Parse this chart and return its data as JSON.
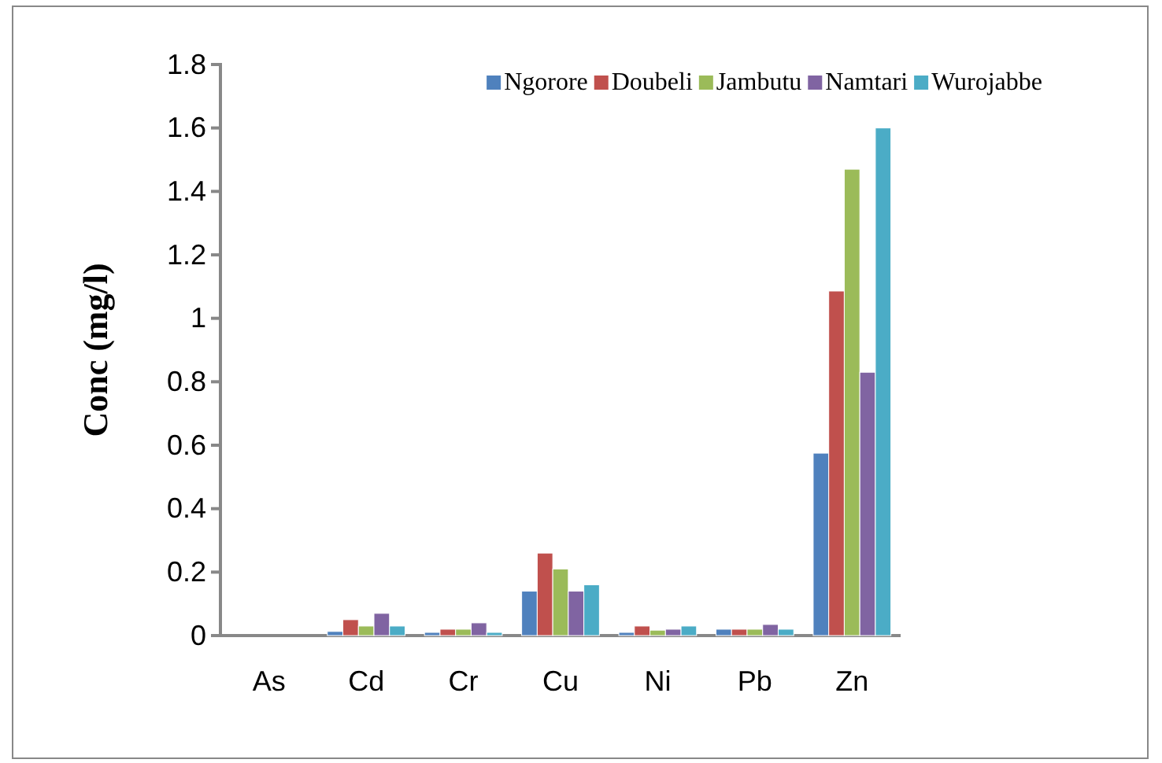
{
  "chart_data": {
    "type": "bar",
    "ylabel": "Conc (mg/l)",
    "categories": [
      "As",
      "Cd",
      "Cr",
      "Cu",
      "Ni",
      "Pb",
      "Zn"
    ],
    "series": [
      {
        "name": "Ngorore",
        "color": "#4f81bd",
        "values": [
          0,
          0.013,
          0.01,
          0.14,
          0.01,
          0.02,
          0.575
        ]
      },
      {
        "name": "Doubeli",
        "color": "#c0504d",
        "values": [
          0,
          0.05,
          0.02,
          0.26,
          0.03,
          0.02,
          1.086
        ]
      },
      {
        "name": "Jambutu",
        "color": "#9bbb59",
        "values": [
          0,
          0.03,
          0.02,
          0.21,
          0.017,
          0.02,
          1.47
        ]
      },
      {
        "name": "Namtari",
        "color": "#8064a2",
        "values": [
          0,
          0.07,
          0.04,
          0.14,
          0.02,
          0.035,
          0.83
        ]
      },
      {
        "name": "Wurojabbe",
        "color": "#4bacc6",
        "values": [
          0,
          0.03,
          0.01,
          0.16,
          0.03,
          0.02,
          1.6
        ]
      }
    ],
    "ylim": [
      0,
      1.8
    ],
    "yticks": [
      0,
      0.2,
      0.4,
      0.6,
      0.8,
      1,
      1.2,
      1.4,
      1.6,
      1.8
    ],
    "legend": "top right"
  }
}
